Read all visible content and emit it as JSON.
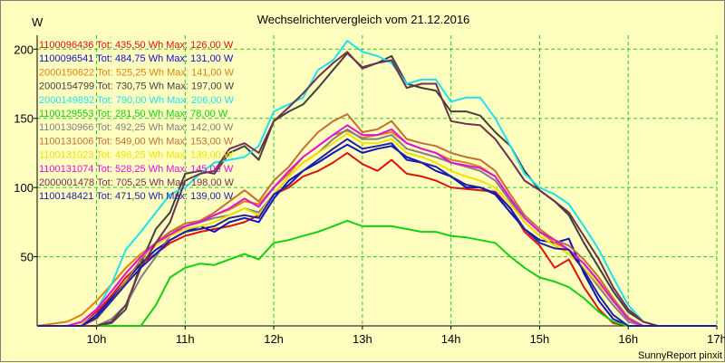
{
  "chart_data": {
    "type": "line",
    "title": "Wechselrichtervergleich vom 21.12.2016",
    "ylabel": "W",
    "xlabel": "",
    "x_range": [
      9.33,
      17.0
    ],
    "y_range": [
      0,
      210
    ],
    "x_ticks": [
      10,
      11,
      12,
      13,
      14,
      15,
      16,
      17
    ],
    "x_tick_labels": [
      "10h",
      "11h",
      "12h",
      "13h",
      "14h",
      "15h",
      "16h",
      "17h"
    ],
    "y_ticks": [
      50,
      100,
      150,
      200
    ],
    "y_tick_labels": [
      "50",
      "100",
      "150",
      "200"
    ],
    "grid": true,
    "legend_position": "top-left",
    "credit": "SunnyReport pinxit",
    "x": [
      9.33,
      9.67,
      9.83,
      10.0,
      10.17,
      10.33,
      10.5,
      10.67,
      10.83,
      11.0,
      11.17,
      11.33,
      11.5,
      11.67,
      11.83,
      12.0,
      12.17,
      12.33,
      12.5,
      12.67,
      12.83,
      13.0,
      13.17,
      13.33,
      13.5,
      13.67,
      13.83,
      14.0,
      14.17,
      14.33,
      14.5,
      14.67,
      14.83,
      15.0,
      15.17,
      15.33,
      15.5,
      15.67,
      15.83,
      16.0,
      16.17,
      16.33,
      16.5,
      16.67,
      16.83,
      17.0
    ],
    "series": [
      {
        "name": "1100096436 Tot: 435,50 Wh Max: 126,00 W",
        "color": "#e01010",
        "values": [
          0,
          0,
          2,
          10,
          22,
          35,
          45,
          52,
          60,
          65,
          68,
          70,
          72,
          75,
          80,
          95,
          100,
          108,
          112,
          118,
          125,
          117,
          112,
          120,
          110,
          108,
          105,
          100,
          99,
          98,
          97,
          85,
          68,
          58,
          42,
          48,
          28,
          12,
          2,
          0,
          0,
          0,
          0,
          0,
          0,
          0
        ]
      },
      {
        "name": "1100096541 Tot: 484,75 Wh Max: 131,00 W",
        "color": "#1010c0",
        "values": [
          0,
          0,
          0,
          8,
          20,
          32,
          45,
          55,
          62,
          68,
          72,
          68,
          75,
          78,
          75,
          92,
          105,
          112,
          118,
          125,
          131,
          125,
          128,
          130,
          122,
          118,
          112,
          108,
          100,
          100,
          95,
          82,
          70,
          62,
          60,
          63,
          38,
          18,
          5,
          0,
          0,
          0,
          0,
          0,
          0,
          0
        ]
      },
      {
        "name": "2000150622 Tot: 525,25 Wh Max: 141,00 W",
        "color": "#e08010",
        "values": [
          0,
          3,
          8,
          18,
          30,
          42,
          52,
          60,
          68,
          72,
          76,
          80,
          84,
          90,
          88,
          100,
          110,
          122,
          130,
          138,
          141,
          136,
          138,
          140,
          132,
          128,
          125,
          120,
          118,
          115,
          108,
          92,
          78,
          68,
          60,
          55,
          45,
          32,
          18,
          5,
          0,
          0,
          0,
          0,
          0,
          0
        ]
      },
      {
        "name": "2000154799 Tot: 730,75 Wh Max: 197,00 W",
        "color": "#404040",
        "values": [
          0,
          0,
          0,
          0,
          2,
          12,
          45,
          70,
          82,
          110,
          112,
          110,
          125,
          130,
          120,
          148,
          155,
          160,
          172,
          185,
          197,
          187,
          190,
          195,
          175,
          172,
          170,
          155,
          155,
          152,
          140,
          130,
          112,
          98,
          90,
          80,
          60,
          42,
          25,
          10,
          3,
          0,
          0,
          0,
          0,
          0
        ]
      },
      {
        "name": "2000149892 Tot: 790,00 Wh Max: 206,00 W",
        "color": "#20e0f0",
        "values": [
          0,
          0,
          2,
          12,
          30,
          55,
          68,
          82,
          95,
          100,
          110,
          118,
          120,
          122,
          130,
          155,
          160,
          165,
          185,
          192,
          206,
          198,
          195,
          190,
          175,
          178,
          178,
          162,
          165,
          165,
          150,
          130,
          110,
          100,
          95,
          88,
          72,
          55,
          35,
          15,
          3,
          0,
          0,
          0,
          0,
          0
        ]
      },
      {
        "name": "1100129553 Tot: 281,50 Wh Max: 78,00 W",
        "color": "#10d010",
        "values": [
          0,
          0,
          0,
          0,
          0,
          0,
          0,
          15,
          35,
          42,
          45,
          44,
          48,
          52,
          48,
          60,
          62,
          65,
          68,
          72,
          76,
          72,
          72,
          72,
          70,
          68,
          68,
          65,
          64,
          62,
          60,
          50,
          42,
          35,
          32,
          28,
          20,
          10,
          3,
          0,
          0,
          0,
          0,
          0,
          0,
          0
        ]
      },
      {
        "name": "1100130966 Tot: 492,25 Wh Max: 142,00 W",
        "color": "#808080",
        "values": [
          0,
          0,
          0,
          0,
          5,
          15,
          35,
          50,
          65,
          72,
          75,
          78,
          80,
          85,
          82,
          95,
          108,
          118,
          125,
          135,
          142,
          135,
          135,
          138,
          128,
          125,
          122,
          118,
          115,
          112,
          105,
          90,
          75,
          65,
          58,
          52,
          42,
          28,
          15,
          3,
          0,
          0,
          0,
          0,
          0,
          0
        ]
      },
      {
        "name": "1100131006 Tot: 549,00 Wh Max: 153,00 W",
        "color": "#c07030",
        "values": [
          0,
          0,
          0,
          5,
          18,
          32,
          48,
          60,
          68,
          74,
          76,
          82,
          90,
          98,
          90,
          105,
          115,
          128,
          140,
          148,
          153,
          140,
          142,
          148,
          135,
          132,
          130,
          125,
          122,
          120,
          112,
          95,
          80,
          70,
          62,
          58,
          48,
          35,
          20,
          6,
          0,
          0,
          0,
          0,
          0,
          0
        ]
      },
      {
        "name": "1100131023 Tot: 496,25 Wh Max: 139,00 W",
        "color": "#f0e000",
        "values": [
          0,
          0,
          2,
          12,
          25,
          38,
          50,
          58,
          65,
          70,
          72,
          75,
          80,
          85,
          80,
          95,
          108,
          118,
          125,
          132,
          139,
          132,
          132,
          135,
          125,
          122,
          118,
          112,
          108,
          105,
          100,
          88,
          75,
          65,
          58,
          52,
          42,
          30,
          18,
          5,
          0,
          0,
          0,
          0,
          0,
          0
        ]
      },
      {
        "name": "1100131074 Tot: 528,25 Wh Max: 145,00 W",
        "color": "#e010e0",
        "values": [
          0,
          0,
          3,
          12,
          25,
          38,
          50,
          60,
          66,
          72,
          75,
          80,
          85,
          92,
          86,
          100,
          112,
          122,
          130,
          138,
          145,
          138,
          138,
          142,
          132,
          128,
          125,
          118,
          116,
          114,
          108,
          92,
          78,
          68,
          62,
          55,
          45,
          32,
          18,
          5,
          0,
          0,
          0,
          0,
          0,
          0
        ]
      },
      {
        "name": "2000001478 Tot: 705,25 Wh Max: 198,00 W",
        "color": "#703050",
        "values": [
          0,
          0,
          0,
          0,
          3,
          15,
          42,
          60,
          75,
          105,
          110,
          112,
          128,
          132,
          125,
          148,
          158,
          168,
          180,
          190,
          198,
          186,
          190,
          192,
          172,
          175,
          175,
          148,
          146,
          145,
          135,
          120,
          105,
          98,
          90,
          82,
          65,
          48,
          28,
          12,
          3,
          0,
          0,
          0,
          0,
          0
        ]
      },
      {
        "name": "1100148421 Tot: 471,50 Wh Max: 139,00 W",
        "color": "#2020a0",
        "values": [
          0,
          0,
          0,
          6,
          18,
          30,
          42,
          52,
          62,
          68,
          70,
          72,
          78,
          80,
          78,
          95,
          102,
          112,
          120,
          128,
          135,
          128,
          130,
          132,
          120,
          118,
          115,
          108,
          102,
          100,
          96,
          85,
          70,
          60,
          56,
          55,
          40,
          22,
          8,
          0,
          0,
          0,
          0,
          0,
          0,
          0
        ]
      }
    ]
  }
}
